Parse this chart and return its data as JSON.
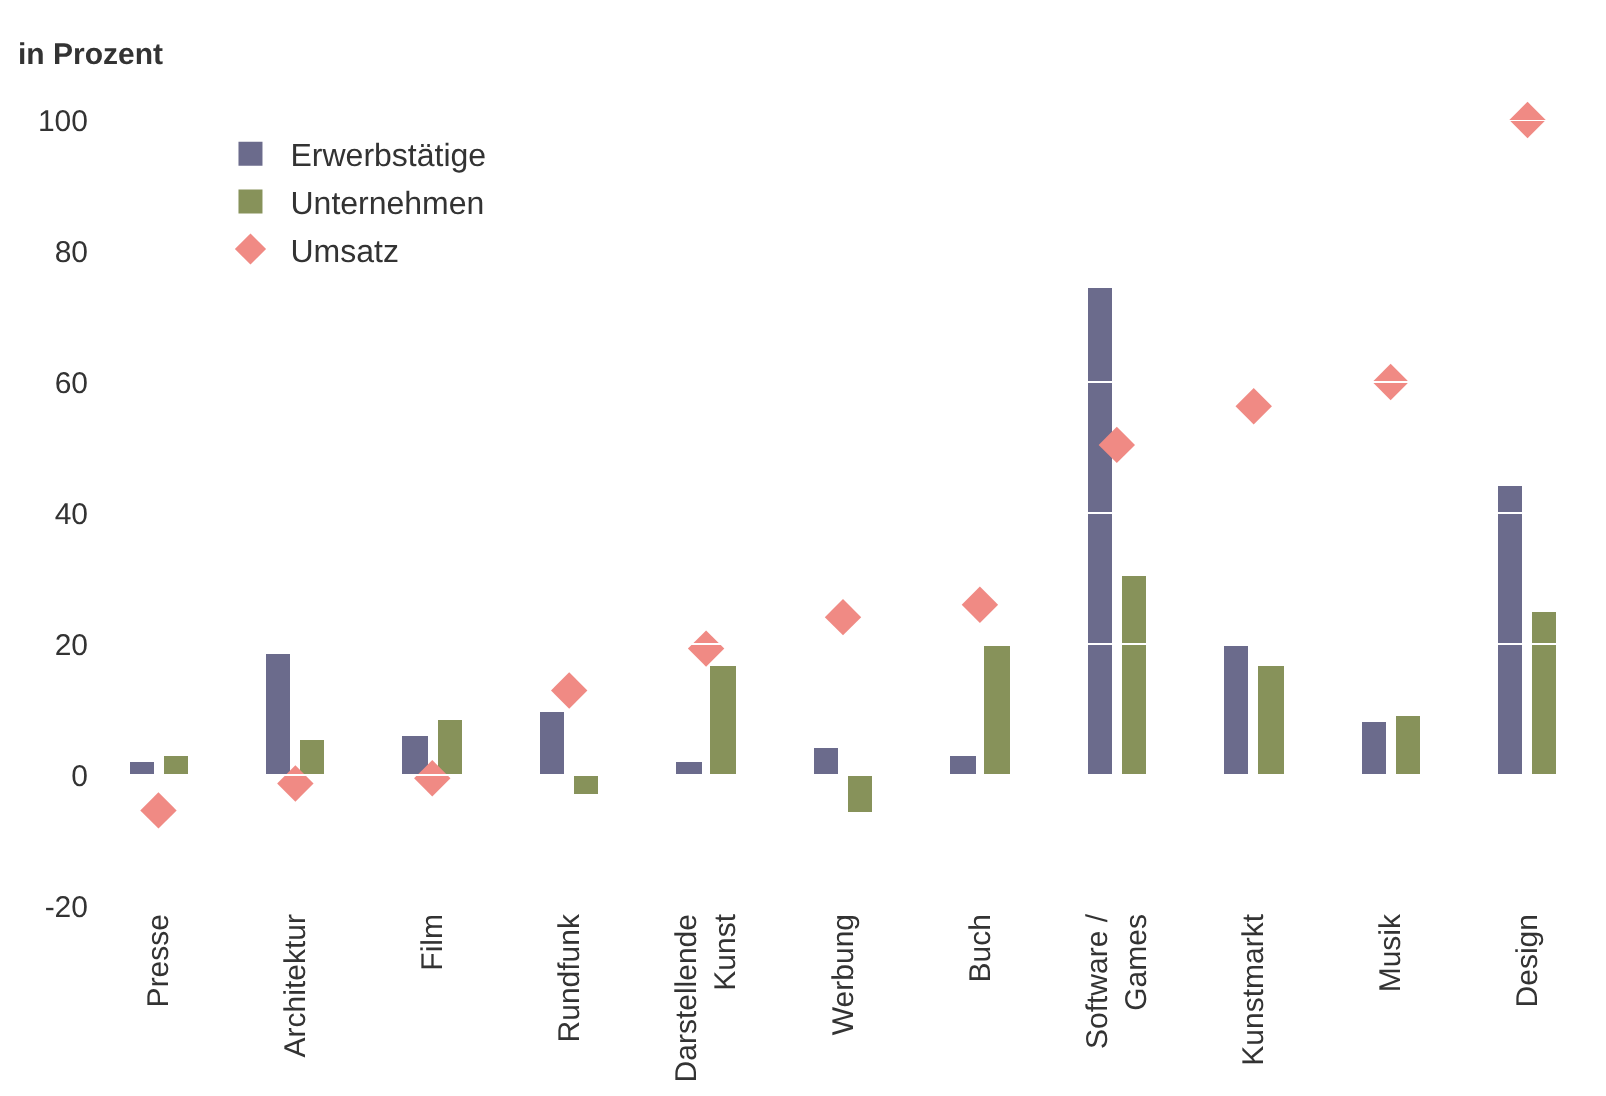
{
  "chart_data": {
    "type": "bar",
    "ylabel": "in Prozent",
    "categories": [
      "Presse",
      "Architektur",
      "Film",
      "Rundfunk",
      "Darstellende\nKunst",
      "Werbung",
      "Buch",
      "Software /\nGames",
      "Kunstmarkt",
      "Musik",
      "Design"
    ],
    "series": [
      {
        "name": "Erwerbstätige",
        "color": "#6b6b8c",
        "values": [
          2.1,
          18.5,
          5.9,
          9.7,
          2.1,
          4,
          3,
          74.5,
          19.6,
          8,
          44
        ]
      },
      {
        "name": "Unternehmen",
        "color": "#87925a",
        "values": [
          3,
          5.4,
          8.3,
          -3,
          16.6,
          -5.6,
          19.8,
          30.3,
          16.6,
          9.1,
          24.9
        ]
      },
      {
        "name": "Umsatz",
        "type": "scatter",
        "marker": "diamond",
        "color": "#f08a84",
        "values": [
          -5.4,
          -1.3,
          -0.5,
          12.9,
          19.3,
          24.1,
          26,
          50.4,
          56.3,
          60,
          100
        ]
      }
    ],
    "ylim": [
      -20,
      100
    ],
    "yticks": [
      -20,
      0,
      20,
      40,
      60,
      80,
      100
    ],
    "grid": "y",
    "legend": "top left"
  }
}
